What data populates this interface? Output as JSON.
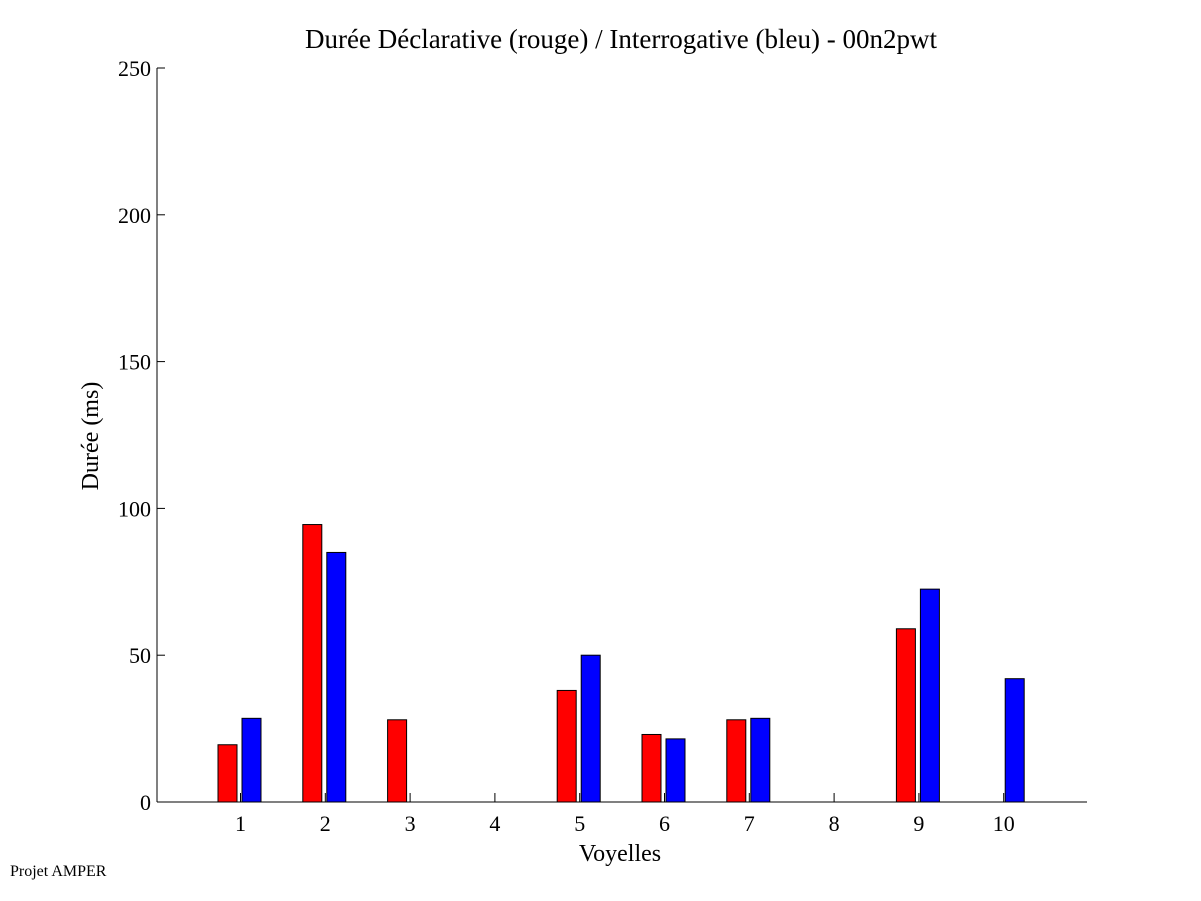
{
  "footer": "Projet AMPER",
  "colors": {
    "declarative": "#ff0000",
    "interrogative": "#0000ff",
    "axis": "#000000"
  },
  "chart_data": {
    "type": "bar",
    "title": "Durée Déclarative (rouge) / Interrogative (bleu) - 00n2pwt",
    "xlabel": "Voyelles",
    "ylabel": "Durée (ms)",
    "categories": [
      "1",
      "2",
      "3",
      "4",
      "5",
      "6",
      "7",
      "8",
      "9",
      "10"
    ],
    "ylim": [
      0,
      250
    ],
    "yticks": [
      "0",
      "50",
      "100",
      "150",
      "200",
      "250"
    ],
    "grid": false,
    "series": [
      {
        "color": "#ff0000",
        "values": [
          19.5,
          94.5,
          28,
          0,
          38,
          23,
          28,
          0,
          59,
          0
        ]
      },
      {
        "color": "#0000ff",
        "values": [
          28.5,
          85,
          0,
          0,
          50,
          21.5,
          28.5,
          0,
          72.5,
          42
        ]
      }
    ]
  }
}
